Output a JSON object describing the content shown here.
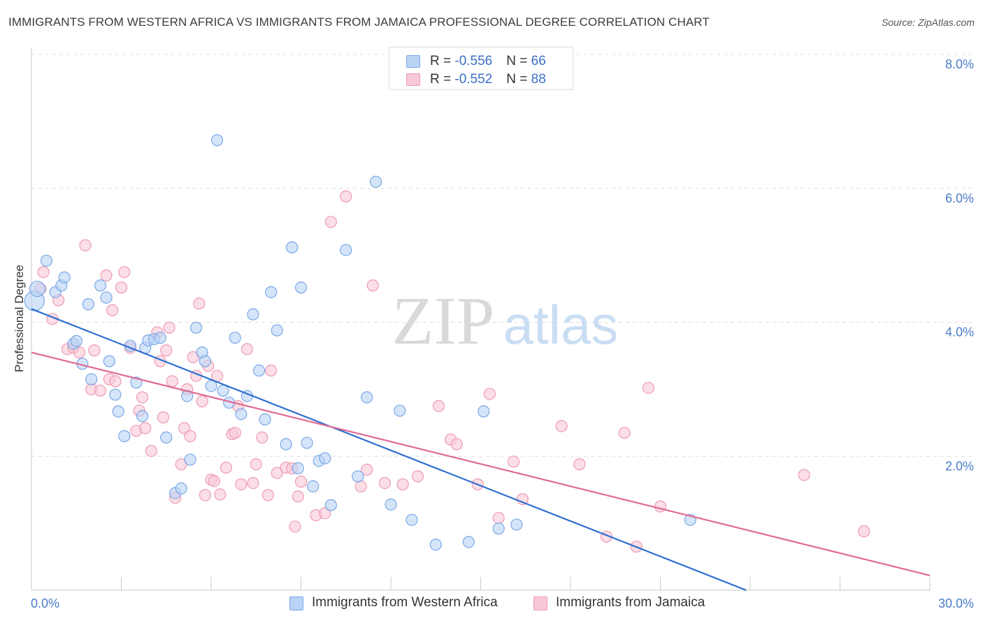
{
  "title": "IMMIGRANTS FROM WESTERN AFRICA VS IMMIGRANTS FROM JAMAICA PROFESSIONAL DEGREE CORRELATION CHART",
  "source": "Source: ZipAtlas.com",
  "watermark": {
    "zip": "ZIP",
    "atlas": "atlas"
  },
  "stats": {
    "blue": {
      "r_label": "R = ",
      "r_value": "-0.556",
      "n_label": "N = ",
      "n_value": "66"
    },
    "pink": {
      "r_label": "R = ",
      "r_value": "-0.552",
      "n_label": "N = ",
      "n_value": "88"
    }
  },
  "legend": {
    "blue": "Immigrants from Western Africa",
    "pink": "Immigrants from Jamaica"
  },
  "colors": {
    "blue_fill": "#b9d3f5",
    "blue_stroke": "#7aa7e6",
    "blue_line": "#2e6fd1",
    "pink_fill": "#f8c8d6",
    "pink_stroke": "#ee9bb4",
    "pink_line": "#e06a93",
    "tick_label": "#4a7cc9",
    "grid": "#dedede"
  },
  "chart_data": {
    "type": "scatter",
    "title": "IMMIGRANTS FROM WESTERN AFRICA VS IMMIGRANTS FROM JAMAICA PROFESSIONAL DEGREE CORRELATION CHART",
    "xlabel": "",
    "ylabel": "Professional Degree",
    "xlim": [
      0,
      30
    ],
    "ylim": [
      0,
      8.0
    ],
    "x_tick_labels": [
      "0.0%",
      "30.0%"
    ],
    "y_ticks": [
      2.0,
      4.0,
      6.0,
      8.0
    ],
    "y_tick_labels": [
      "2.0%",
      "4.0%",
      "6.0%",
      "8.0%"
    ],
    "grid": true,
    "legend_position": "bottom-center",
    "series": [
      {
        "name": "Immigrants from Western Africa",
        "color": "#7aa7e6",
        "points": [
          [
            0.1,
            4.32
          ],
          [
            0.2,
            4.5
          ],
          [
            0.5,
            4.92
          ],
          [
            0.8,
            4.45
          ],
          [
            1.0,
            4.55
          ],
          [
            1.1,
            4.67
          ],
          [
            1.4,
            3.68
          ],
          [
            1.5,
            3.72
          ],
          [
            1.7,
            3.38
          ],
          [
            1.9,
            4.27
          ],
          [
            2.0,
            3.15
          ],
          [
            2.3,
            4.55
          ],
          [
            2.5,
            4.37
          ],
          [
            2.6,
            3.42
          ],
          [
            2.8,
            2.92
          ],
          [
            2.9,
            2.67
          ],
          [
            3.1,
            2.3
          ],
          [
            3.3,
            3.65
          ],
          [
            3.5,
            3.1
          ],
          [
            3.7,
            2.6
          ],
          [
            3.8,
            3.62
          ],
          [
            3.9,
            3.73
          ],
          [
            4.1,
            3.75
          ],
          [
            4.3,
            3.77
          ],
          [
            4.5,
            2.28
          ],
          [
            4.8,
            1.45
          ],
          [
            5.0,
            1.52
          ],
          [
            5.2,
            2.9
          ],
          [
            5.3,
            1.95
          ],
          [
            5.5,
            3.92
          ],
          [
            5.7,
            3.55
          ],
          [
            5.8,
            3.42
          ],
          [
            6.0,
            3.05
          ],
          [
            6.2,
            6.72
          ],
          [
            6.4,
            2.98
          ],
          [
            6.6,
            2.8
          ],
          [
            6.8,
            3.77
          ],
          [
            7.0,
            2.63
          ],
          [
            7.2,
            2.9
          ],
          [
            7.4,
            4.12
          ],
          [
            7.6,
            3.28
          ],
          [
            7.8,
            2.55
          ],
          [
            8.0,
            4.45
          ],
          [
            8.2,
            3.88
          ],
          [
            8.5,
            2.18
          ],
          [
            8.7,
            5.12
          ],
          [
            8.9,
            1.82
          ],
          [
            9.0,
            4.52
          ],
          [
            9.2,
            2.2
          ],
          [
            9.4,
            1.55
          ],
          [
            9.6,
            1.93
          ],
          [
            9.8,
            1.97
          ],
          [
            10.0,
            1.27
          ],
          [
            10.5,
            5.08
          ],
          [
            10.9,
            1.7
          ],
          [
            11.2,
            2.88
          ],
          [
            11.5,
            6.1
          ],
          [
            12.0,
            1.28
          ],
          [
            12.3,
            2.68
          ],
          [
            12.7,
            1.05
          ],
          [
            13.5,
            0.68
          ],
          [
            14.6,
            0.72
          ],
          [
            15.1,
            2.67
          ],
          [
            15.6,
            0.92
          ],
          [
            16.2,
            0.98
          ],
          [
            22.0,
            1.05
          ]
        ]
      },
      {
        "name": "Immigrants from Jamaica",
        "color": "#ee9bb4",
        "points": [
          [
            0.3,
            4.5
          ],
          [
            0.4,
            4.75
          ],
          [
            0.7,
            4.05
          ],
          [
            0.9,
            4.33
          ],
          [
            1.2,
            3.6
          ],
          [
            1.4,
            3.62
          ],
          [
            1.6,
            3.55
          ],
          [
            1.8,
            5.15
          ],
          [
            2.0,
            3.0
          ],
          [
            2.1,
            3.58
          ],
          [
            2.3,
            2.98
          ],
          [
            2.5,
            4.7
          ],
          [
            2.6,
            3.15
          ],
          [
            2.7,
            4.18
          ],
          [
            2.8,
            3.12
          ],
          [
            3.0,
            4.52
          ],
          [
            3.1,
            4.75
          ],
          [
            3.3,
            3.62
          ],
          [
            3.5,
            2.38
          ],
          [
            3.6,
            2.68
          ],
          [
            3.7,
            2.88
          ],
          [
            3.8,
            2.42
          ],
          [
            4.0,
            2.08
          ],
          [
            4.2,
            3.85
          ],
          [
            4.3,
            3.42
          ],
          [
            4.4,
            2.58
          ],
          [
            4.5,
            3.58
          ],
          [
            4.6,
            3.92
          ],
          [
            4.7,
            3.12
          ],
          [
            4.8,
            1.38
          ],
          [
            5.0,
            1.88
          ],
          [
            5.1,
            2.42
          ],
          [
            5.2,
            3.0
          ],
          [
            5.3,
            2.3
          ],
          [
            5.4,
            3.48
          ],
          [
            5.5,
            3.2
          ],
          [
            5.6,
            4.28
          ],
          [
            5.7,
            2.82
          ],
          [
            5.8,
            1.42
          ],
          [
            5.9,
            3.35
          ],
          [
            6.0,
            1.65
          ],
          [
            6.1,
            1.63
          ],
          [
            6.2,
            3.2
          ],
          [
            6.3,
            1.43
          ],
          [
            6.5,
            1.83
          ],
          [
            6.7,
            2.33
          ],
          [
            6.8,
            2.35
          ],
          [
            6.9,
            2.75
          ],
          [
            7.0,
            1.58
          ],
          [
            7.2,
            3.6
          ],
          [
            7.4,
            1.6
          ],
          [
            7.5,
            1.88
          ],
          [
            7.7,
            2.28
          ],
          [
            7.9,
            1.42
          ],
          [
            8.0,
            3.28
          ],
          [
            8.2,
            1.75
          ],
          [
            8.5,
            1.83
          ],
          [
            8.7,
            1.82
          ],
          [
            8.8,
            0.95
          ],
          [
            8.9,
            1.4
          ],
          [
            9.0,
            1.62
          ],
          [
            9.5,
            1.12
          ],
          [
            9.8,
            1.15
          ],
          [
            10.0,
            5.5
          ],
          [
            10.5,
            5.88
          ],
          [
            11.0,
            1.55
          ],
          [
            11.2,
            1.8
          ],
          [
            11.4,
            4.55
          ],
          [
            11.8,
            1.6
          ],
          [
            12.4,
            1.58
          ],
          [
            12.9,
            1.7
          ],
          [
            13.6,
            2.75
          ],
          [
            14.0,
            2.25
          ],
          [
            14.2,
            2.18
          ],
          [
            14.9,
            1.58
          ],
          [
            15.3,
            2.93
          ],
          [
            15.6,
            1.08
          ],
          [
            16.1,
            1.92
          ],
          [
            16.4,
            1.36
          ],
          [
            17.7,
            2.45
          ],
          [
            18.3,
            1.88
          ],
          [
            19.2,
            0.8
          ],
          [
            19.8,
            2.35
          ],
          [
            20.2,
            0.65
          ],
          [
            20.6,
            3.02
          ],
          [
            21.0,
            1.25
          ],
          [
            25.8,
            1.72
          ],
          [
            27.8,
            0.88
          ]
        ]
      }
    ],
    "trend_lines": [
      {
        "series": "Immigrants from Western Africa",
        "x": [
          0,
          25
        ],
        "y": [
          4.2,
          -0.2
        ]
      },
      {
        "series": "Immigrants from Jamaica",
        "x": [
          0,
          30
        ],
        "y": [
          3.55,
          0.22
        ]
      }
    ]
  }
}
